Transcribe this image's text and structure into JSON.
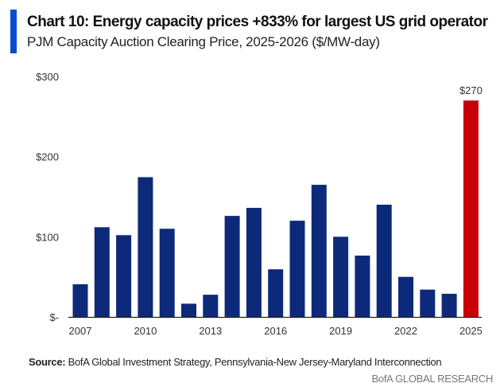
{
  "header": {
    "title": "Chart 10: Energy capacity prices +833% for largest US grid operator",
    "subtitle": "PJM Capacity Auction Clearing Price, 2025-2026 ($/MW-day)"
  },
  "footer": {
    "source_label": "Source:",
    "source_text": " BofA Global Investment Strategy, Pennsylvania-New Jersey-Maryland Interconnection",
    "brand": "BofA GLOBAL RESEARCH"
  },
  "chart_data": {
    "type": "bar",
    "title": "Chart 10: Energy capacity prices +833% for largest US grid operator",
    "subtitle": "PJM Capacity Auction Clearing Price, 2025-2026 ($/MW-day)",
    "xlabel": "",
    "ylabel": "",
    "ylim": [
      0,
      300
    ],
    "yticks": [
      {
        "value": 0,
        "label": "$-"
      },
      {
        "value": 100,
        "label": "$100"
      },
      {
        "value": 200,
        "label": "$200"
      },
      {
        "value": 300,
        "label": "$300"
      }
    ],
    "xtick_labels": [
      "2007",
      "2010",
      "2013",
      "2016",
      "2019",
      "2022",
      "2025"
    ],
    "categories": [
      "2007",
      "2008",
      "2009",
      "2010",
      "2011",
      "2012",
      "2013",
      "2014",
      "2015",
      "2016",
      "2017",
      "2018",
      "2019",
      "2020",
      "2021",
      "2022",
      "2023",
      "2024",
      "2025"
    ],
    "values": [
      40.8,
      111.9,
      102,
      174.3,
      110,
      16.5,
      27.7,
      126,
      136,
      59.4,
      120,
      164.8,
      100,
      76.5,
      140,
      50,
      34.1,
      28.9,
      269.9
    ],
    "colors": {
      "default": "#0d2a7a",
      "highlight": "#c8000a"
    },
    "highlight_index": 18,
    "data_labels": [
      {
        "index": 18,
        "label": "$270"
      }
    ],
    "grid": false
  }
}
